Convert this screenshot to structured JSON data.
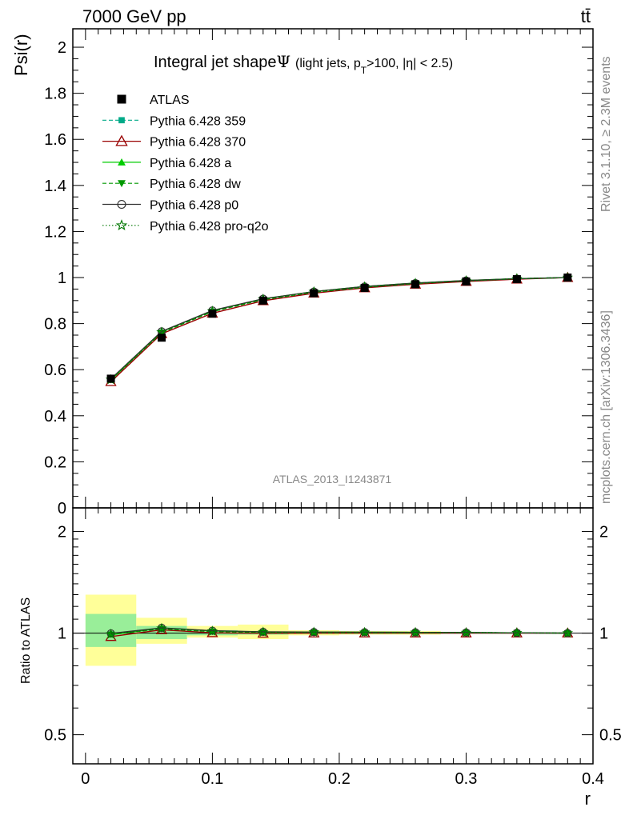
{
  "header": {
    "energy_label": "7000 GeV pp",
    "process_label": "tt̄"
  },
  "side": {
    "rivet_label": "Rivet 3.1.10, ≥ 2.3M events",
    "source_label": "mcplots.cern.ch [arXiv:1306.3436]"
  },
  "main_plot": {
    "title_main": "Integral jet shape",
    "title_symbol": "Ψ",
    "title_detail_pre": "(light jets, p",
    "title_detail_sub": "T",
    "title_detail_post": ">100, |η| < 2.5)",
    "ylabel": "Psi(r)",
    "analysis_id": "ATLAS_2013_I1243871",
    "yticks": [
      "0",
      "0.2",
      "0.4",
      "0.6",
      "0.8",
      "1",
      "1.2",
      "1.4",
      "1.6",
      "1.8",
      "2"
    ]
  },
  "ratio_plot": {
    "ylabel": "Ratio to ATLAS",
    "yticks": [
      "0.5",
      "1",
      "2"
    ]
  },
  "x_axis": {
    "label": "r",
    "ticks": [
      "0",
      "0.1",
      "0.2",
      "0.3",
      "0.4"
    ]
  },
  "legend": [
    {
      "label": "ATLAS",
      "color": "#000000",
      "marker": "square",
      "style": "none"
    },
    {
      "label": "Pythia 6.428 359",
      "color": "#00aa88",
      "marker": "small-square",
      "style": "dashed"
    },
    {
      "label": "Pythia 6.428 370",
      "color": "#990000",
      "marker": "open-triangle",
      "style": "solid"
    },
    {
      "label": "Pythia 6.428 a",
      "color": "#00cc00",
      "marker": "triangle",
      "style": "solid"
    },
    {
      "label": "Pythia 6.428 dw",
      "color": "#009900",
      "marker": "triangle-down",
      "style": "dashed"
    },
    {
      "label": "Pythia 6.428 p0",
      "color": "#333333",
      "marker": "open-circle",
      "style": "solid"
    },
    {
      "label": "Pythia 6.428 pro-q2o",
      "color": "#007700",
      "marker": "star",
      "style": "dotted"
    }
  ],
  "chart_data": {
    "type": "line",
    "x_edges": [
      0,
      0.04,
      0.08,
      0.12,
      0.16,
      0.2,
      0.24,
      0.28,
      0.32,
      0.36,
      0.4
    ],
    "x": [
      0.02,
      0.06,
      0.1,
      0.14,
      0.18,
      0.22,
      0.26,
      0.3,
      0.34,
      0.38
    ],
    "xlim": [
      -0.01,
      0.4
    ],
    "ylim": [
      0,
      2.08
    ],
    "ratio_ylim": [
      0.41,
      2.35
    ],
    "ratio_log_scale": true,
    "xlabel": "r",
    "ylabel": "Psi(r)",
    "data": {
      "name": "ATLAS",
      "values": [
        0.561,
        0.739,
        0.843,
        0.9,
        0.932,
        0.955,
        0.971,
        0.983,
        0.993,
        1.0
      ]
    },
    "series": [
      {
        "name": "Pythia 6.428 359",
        "values": [
          0.557,
          0.762,
          0.853,
          0.905,
          0.937,
          0.959,
          0.975,
          0.986,
          0.995,
          1.0
        ]
      },
      {
        "name": "Pythia 6.428 370",
        "values": [
          0.548,
          0.756,
          0.845,
          0.899,
          0.932,
          0.955,
          0.971,
          0.983,
          0.993,
          1.0
        ]
      },
      {
        "name": "Pythia 6.428 a",
        "values": [
          0.555,
          0.765,
          0.856,
          0.907,
          0.939,
          0.961,
          0.976,
          0.987,
          0.995,
          1.0
        ]
      },
      {
        "name": "Pythia 6.428 dw",
        "values": [
          0.556,
          0.761,
          0.852,
          0.904,
          0.936,
          0.958,
          0.974,
          0.986,
          0.995,
          1.0
        ]
      },
      {
        "name": "Pythia 6.428 p0",
        "values": [
          0.56,
          0.766,
          0.857,
          0.908,
          0.939,
          0.961,
          0.976,
          0.987,
          0.995,
          1.0
        ]
      },
      {
        "name": "Pythia 6.428 pro-q2o",
        "values": [
          0.557,
          0.763,
          0.854,
          0.906,
          0.938,
          0.96,
          0.975,
          0.986,
          0.995,
          1.0
        ]
      }
    ],
    "ratio_band_stat": [
      [
        0.91,
        1.14
      ],
      [
        0.96,
        1.05
      ],
      [
        0.985,
        1.02
      ],
      [
        0.99,
        1.01
      ],
      [
        0.995,
        1.007
      ],
      [
        0.995,
        1.006
      ],
      [
        0.997,
        1.004
      ],
      [
        0.998,
        1.003
      ],
      [
        0.999,
        1.002
      ],
      [
        1.0,
        1.0
      ]
    ],
    "ratio_band_total": [
      [
        0.8,
        1.3
      ],
      [
        0.93,
        1.11
      ],
      [
        0.97,
        1.05
      ],
      [
        0.96,
        1.06
      ],
      [
        0.985,
        1.02
      ],
      [
        0.99,
        1.015
      ],
      [
        0.99,
        1.015
      ],
      [
        1.0,
        1.0
      ],
      [
        1.0,
        1.0
      ],
      [
        1.0,
        1.0
      ]
    ],
    "band_colors": {
      "stat": "#99ee99",
      "total": "#ffff99"
    }
  }
}
